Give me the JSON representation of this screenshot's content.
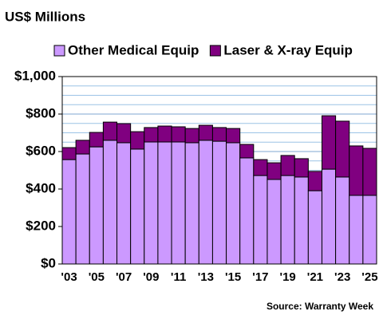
{
  "chart_data": {
    "type": "stacked_bar",
    "title": "US$ Millions",
    "source": "Source: Warranty Week",
    "categories": [
      "'03",
      null,
      "'05",
      null,
      "'07",
      null,
      "'09",
      null,
      "'11",
      null,
      "'13",
      null,
      "'15",
      null,
      "'17",
      null,
      "'19",
      null,
      "'21",
      null,
      "'23",
      null,
      "'25"
    ],
    "series": [
      {
        "name": "Other Medical Equip",
        "color": "#cc99ff",
        "values": [
          557,
          587,
          625,
          660,
          647,
          613,
          651,
          651,
          651,
          647,
          660,
          655,
          647,
          566,
          472,
          451,
          472,
          464,
          391,
          506,
          464,
          366,
          366
        ]
      },
      {
        "name": "Laser & X-ray Equip",
        "color": "#800080",
        "values": [
          64,
          73,
          77,
          97,
          102,
          93,
          77,
          85,
          81,
          76,
          80,
          73,
          76,
          72,
          85,
          89,
          107,
          98,
          103,
          285,
          298,
          264,
          251
        ]
      }
    ],
    "ylim": [
      0,
      1000
    ],
    "yticks": [
      {
        "value": 0,
        "label": "$0"
      },
      {
        "value": 200,
        "label": "$200"
      },
      {
        "value": 400,
        "label": "$400"
      },
      {
        "value": 600,
        "label": "$600"
      },
      {
        "value": 800,
        "label": "$800"
      },
      {
        "value": 1000,
        "label": "$1,000"
      }
    ],
    "minor_yticks": [
      50,
      100,
      150,
      250,
      300,
      350,
      450,
      500,
      550,
      650,
      700,
      750,
      850,
      900,
      950
    ],
    "grid": true
  }
}
